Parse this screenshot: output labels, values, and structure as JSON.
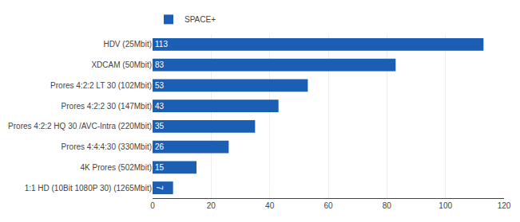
{
  "chart_data": {
    "type": "bar",
    "orientation": "horizontal",
    "categories": [
      "HDV (25Mbit)",
      "XDCAM (50Mbit)",
      "Prores 4:2:2 LT 30 (102Mbit)",
      "Prores 4:2:2 30 (147Mbit)",
      "Prores 4:2:2 HQ 30 /AVC-Intra (220Mbit)",
      "Prores 4:4:4:30 (330Mbit)",
      "4K Prores (502Mbit)",
      "1:1 HD (10Bit 1080P 30) (1265Mbit)"
    ],
    "series": [
      {
        "name": "SPACE+",
        "color": "#1a5fb4",
        "values": [
          113,
          83,
          53,
          43,
          35,
          26,
          15,
          7
        ]
      }
    ],
    "xlim": [
      0,
      120
    ],
    "xticks": [
      0,
      20,
      40,
      60,
      80,
      100,
      120
    ],
    "grid": true,
    "data_labels": true,
    "legend": "top"
  }
}
